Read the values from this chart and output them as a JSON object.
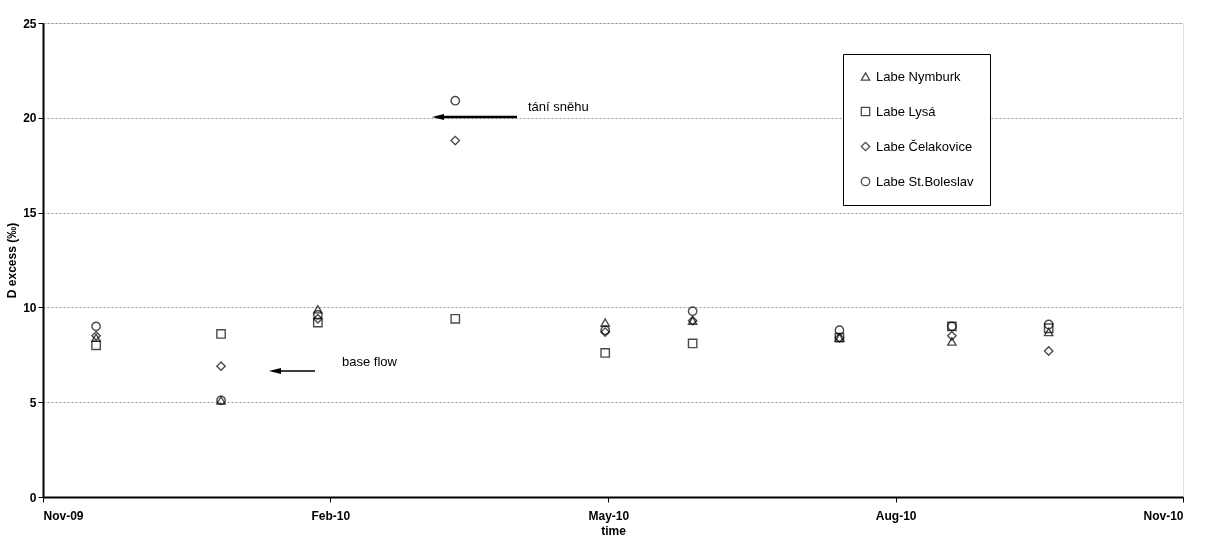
{
  "chart_data": {
    "type": "scatter",
    "xlabel": "time",
    "ylabel": "D excess (‰)",
    "x": [
      "2009-11-18",
      "2009-12-28",
      "2010-01-28",
      "2010-03-13",
      "2010-04-30",
      "2010-05-28",
      "2010-07-14",
      "2010-08-19",
      "2010-09-19"
    ],
    "series": [
      {
        "name": "Labe Nymburk",
        "color": "#000000",
        "marker": "triangle",
        "values": [
          8.4,
          5.1,
          9.9,
          null,
          9.2,
          9.3,
          8.4,
          8.2,
          8.7
        ]
      },
      {
        "name": "Labe Lysá",
        "color": "#000000",
        "marker": "square",
        "values": [
          8.0,
          8.6,
          9.2,
          9.4,
          7.6,
          8.1,
          8.4,
          9.0,
          8.9
        ]
      },
      {
        "name": "Labe Čelakovice",
        "color": "#000000",
        "marker": "diamond",
        "values": [
          8.5,
          6.9,
          9.4,
          18.8,
          8.7,
          9.3,
          8.4,
          8.5,
          7.7
        ]
      },
      {
        "name": "Labe St.Boleslav",
        "color": "#000000",
        "marker": "circle",
        "values": [
          9.0,
          5.1,
          9.6,
          20.9,
          8.8,
          9.8,
          8.8,
          9.0,
          9.1
        ]
      }
    ],
    "xlim": [
      "2009-11-01",
      "2010-11-01"
    ],
    "xticks": [
      {
        "value": "2009-11-01",
        "label": "Nov-09"
      },
      {
        "value": "2010-02-01",
        "label": "Feb-10"
      },
      {
        "value": "2010-05-01",
        "label": "May-10"
      },
      {
        "value": "2010-08-01",
        "label": "Aug-10"
      },
      {
        "value": "2010-11-01",
        "label": "Nov-10"
      }
    ],
    "ylim": [
      0,
      25
    ],
    "yticks": [
      0,
      5,
      10,
      15,
      20,
      25
    ],
    "grid": "y",
    "legend": "top right",
    "annotations": [
      "base flow",
      "tání sněhu"
    ]
  }
}
